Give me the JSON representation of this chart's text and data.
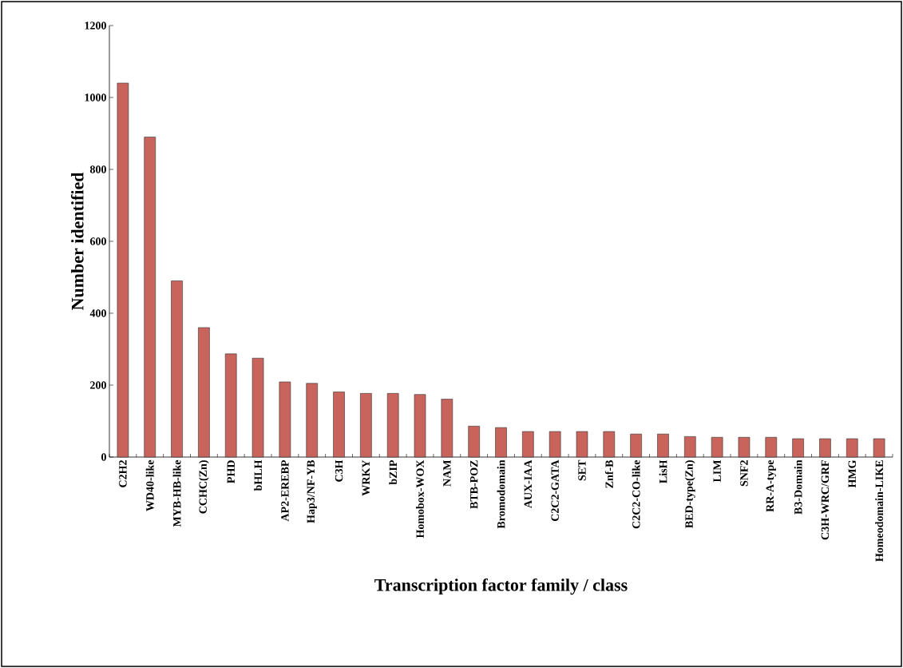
{
  "chart_data": {
    "type": "bar",
    "xlabel": "Transcription factor family / class",
    "ylabel": "Number identified",
    "categories": [
      "C2H2",
      "WD40-like",
      "MYB-HB-like",
      "CCHC(Zn)",
      "PHD",
      "bHLH",
      "AP2-EREBP",
      "Hap3/NF-YB",
      "C3H",
      "WRKY",
      "bZIP",
      "Homobox-WOX",
      "NAM",
      "BTB-POZ",
      "Bromodomain",
      "AUX-IAA",
      "C2C2-GATA",
      "SET",
      "Znf-B",
      "C2C2-CO-like",
      "LisH",
      "BED-type(Zn)",
      "LIM",
      "SNF2",
      "RR-A-type",
      "B3-Domain",
      "C3H-WRC/GRF",
      "HMG",
      "Homeodomain-LIKE"
    ],
    "values": [
      1040,
      890,
      490,
      360,
      287,
      275,
      209,
      205,
      181,
      177,
      177,
      174,
      161,
      86,
      82,
      71,
      71,
      71,
      71,
      64,
      64,
      57,
      55,
      55,
      55,
      51,
      51,
      51,
      51
    ],
    "color": "#c8645c",
    "ylim": [
      0,
      1200
    ],
    "yticks": [
      0,
      200,
      400,
      600,
      800,
      1000,
      1200
    ]
  }
}
